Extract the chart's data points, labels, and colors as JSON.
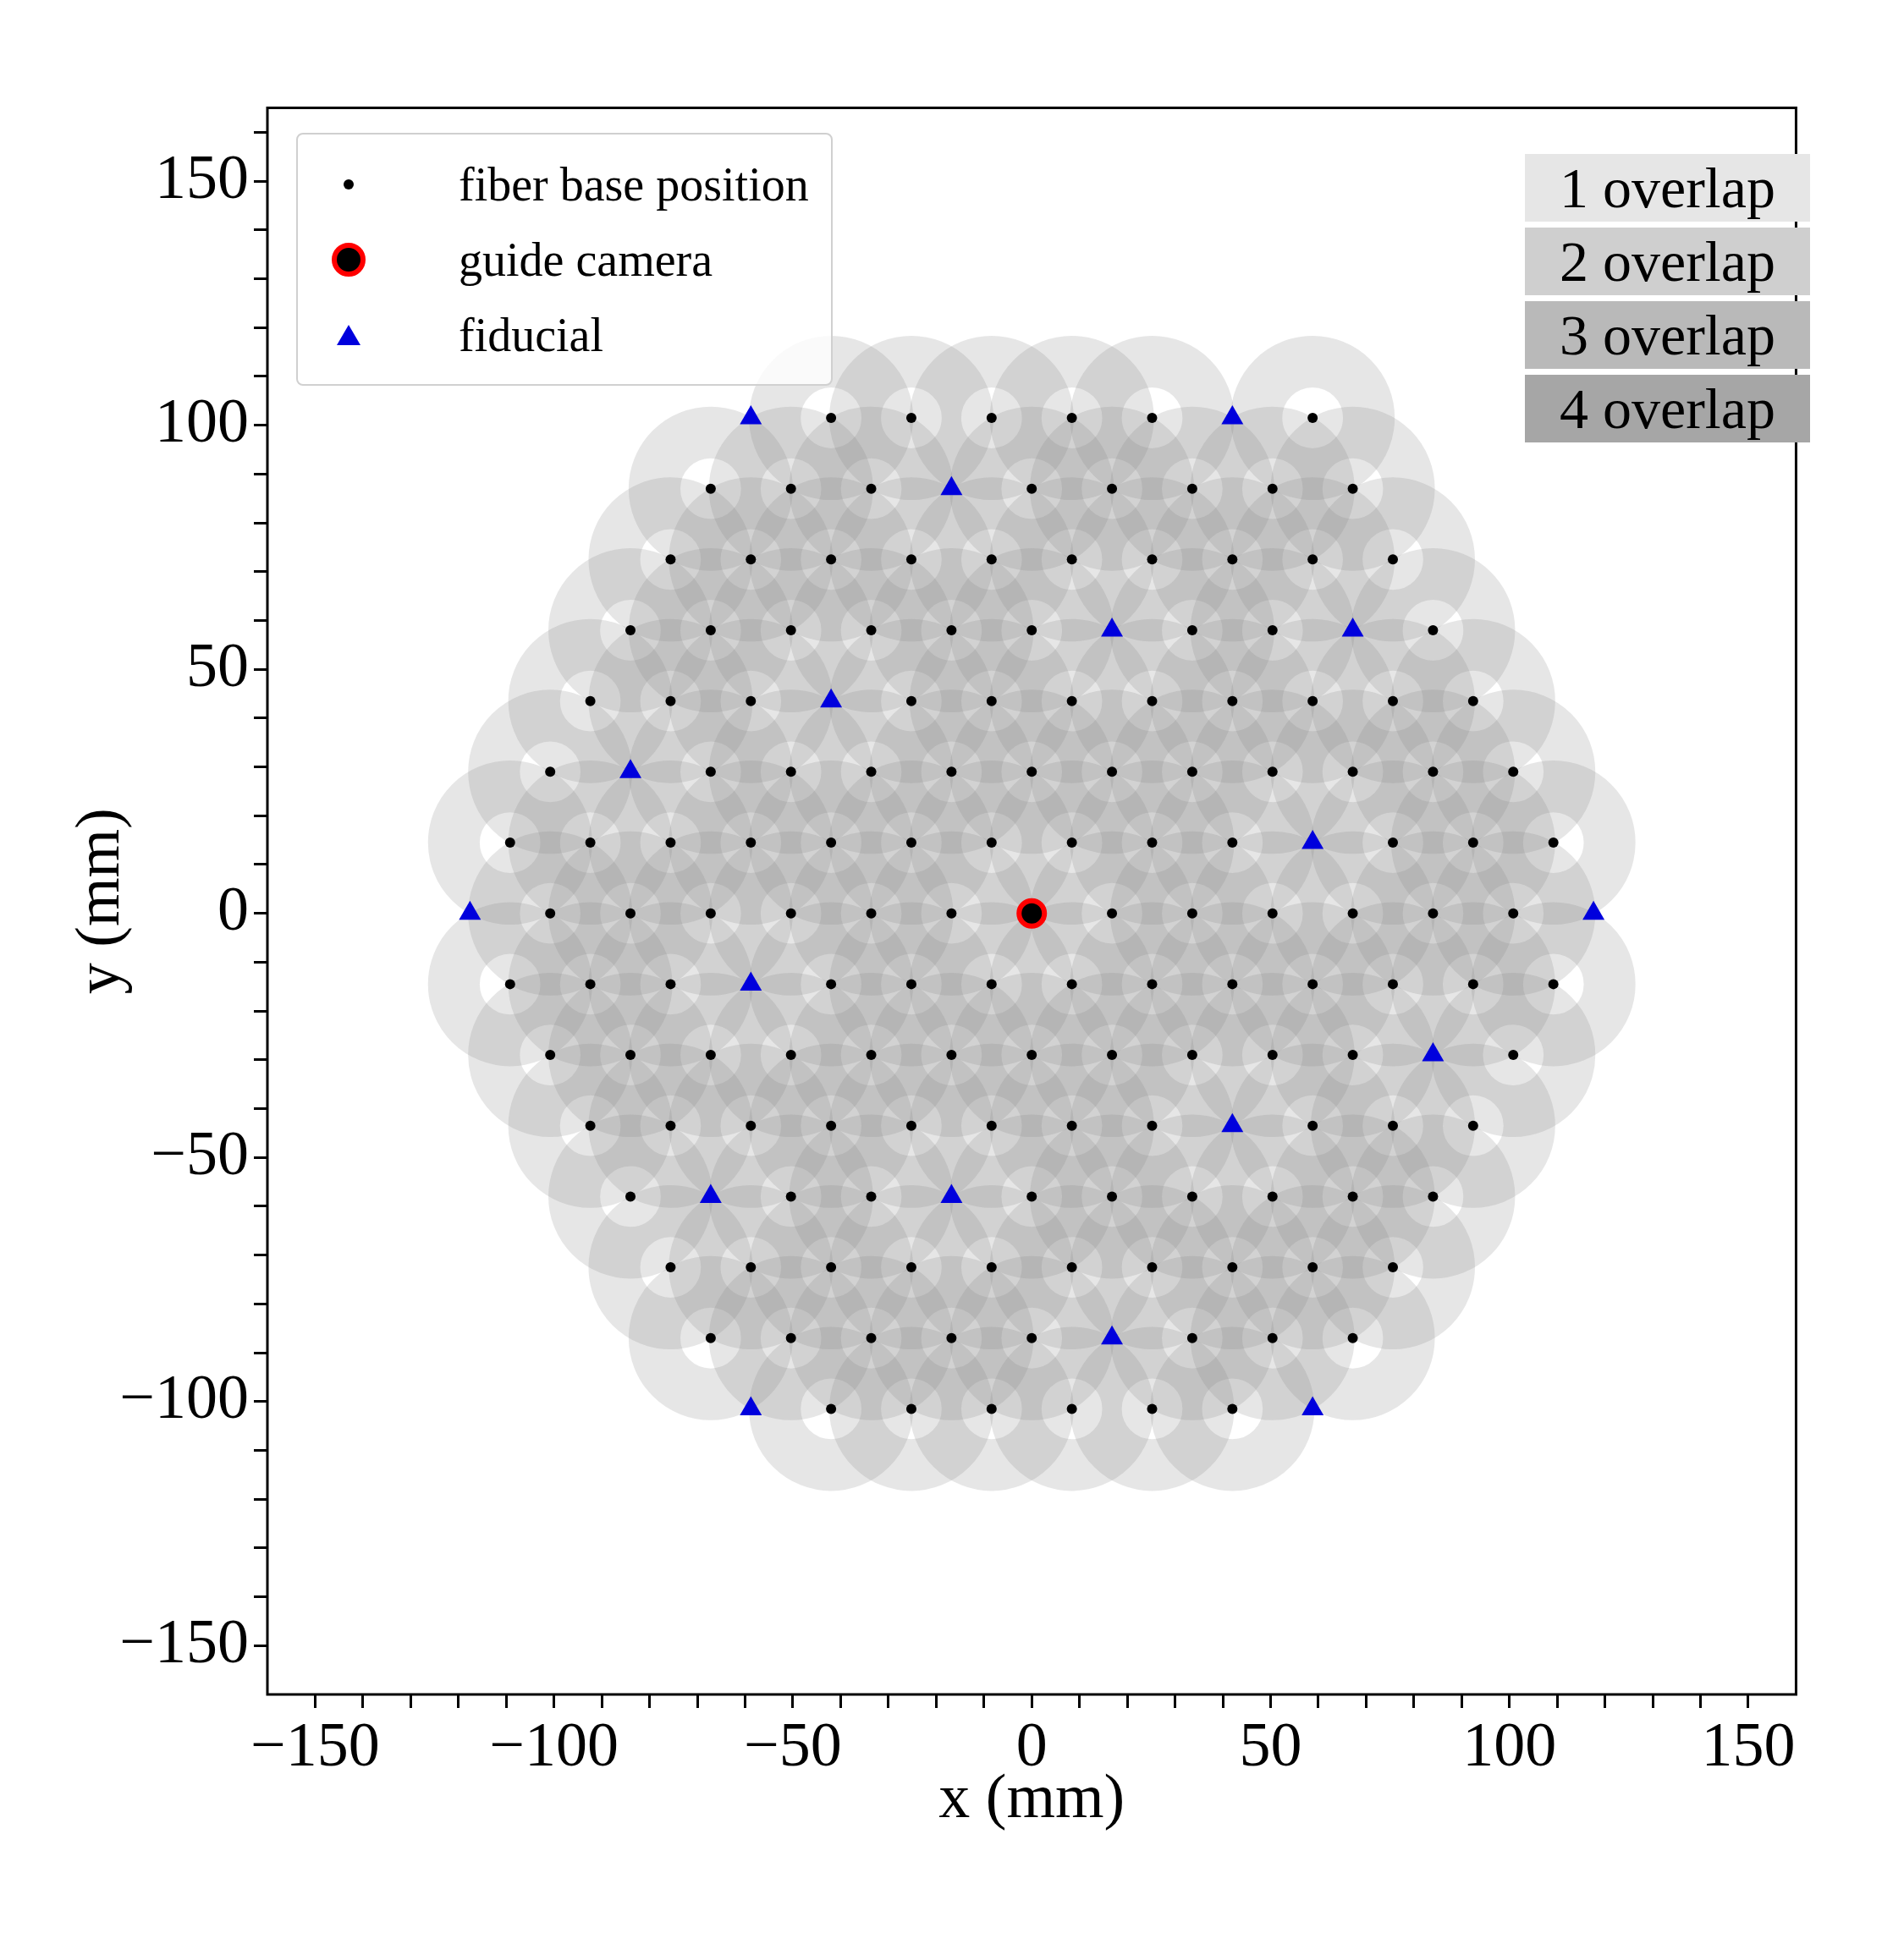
{
  "chart_data": {
    "type": "scatter",
    "xlabel": "x (mm)",
    "ylabel": "y (mm)",
    "legend": "top left",
    "xlim": [
      -160,
      160
    ],
    "ylim": [
      -160,
      165
    ],
    "xticks": [
      {
        "value": -150,
        "label": "−150"
      },
      {
        "value": -140,
        "label": null
      },
      {
        "value": -130,
        "label": null
      },
      {
        "value": -120,
        "label": null
      },
      {
        "value": -110,
        "label": null
      },
      {
        "value": -100,
        "label": "−100"
      },
      {
        "value": -90,
        "label": null
      },
      {
        "value": -80,
        "label": null
      },
      {
        "value": -70,
        "label": null
      },
      {
        "value": -60,
        "label": null
      },
      {
        "value": -50,
        "label": "−50"
      },
      {
        "value": -40,
        "label": null
      },
      {
        "value": -30,
        "label": null
      },
      {
        "value": -20,
        "label": null
      },
      {
        "value": -10,
        "label": null
      },
      0,
      {
        "value": 10,
        "label": null
      },
      {
        "value": 20,
        "label": null
      },
      {
        "value": 30,
        "label": null
      },
      {
        "value": 40,
        "label": null
      },
      50,
      {
        "value": 60,
        "label": null
      },
      {
        "value": 70,
        "label": null
      },
      {
        "value": 80,
        "label": null
      },
      {
        "value": 90,
        "label": null
      },
      100,
      {
        "value": 110,
        "label": null
      },
      {
        "value": 120,
        "label": null
      },
      {
        "value": 130,
        "label": null
      },
      {
        "value": 140,
        "label": null
      },
      150
    ],
    "yticks": [
      {
        "value": -150,
        "label": "−150"
      },
      {
        "value": -140,
        "label": null
      },
      {
        "value": -130,
        "label": null
      },
      {
        "value": -120,
        "label": null
      },
      {
        "value": -110,
        "label": null
      },
      {
        "value": -100,
        "label": "−100"
      },
      {
        "value": -90,
        "label": null
      },
      {
        "value": -80,
        "label": null
      },
      {
        "value": -70,
        "label": null
      },
      {
        "value": -60,
        "label": null
      },
      {
        "value": -50,
        "label": "−50"
      },
      {
        "value": -40,
        "label": null
      },
      {
        "value": -30,
        "label": null
      },
      {
        "value": -20,
        "label": null
      },
      {
        "value": -10,
        "label": null
      },
      0,
      {
        "value": 10,
        "label": null
      },
      {
        "value": 20,
        "label": null
      },
      {
        "value": 30,
        "label": null
      },
      {
        "value": 40,
        "label": null
      },
      50,
      {
        "value": 60,
        "label": null
      },
      {
        "value": 70,
        "label": null
      },
      {
        "value": 80,
        "label": null
      },
      {
        "value": 90,
        "label": null
      },
      100,
      {
        "value": 110,
        "label": null
      },
      {
        "value": 120,
        "label": null
      },
      {
        "value": 130,
        "label": null
      },
      {
        "value": 140,
        "label": null
      },
      150,
      {
        "value": 160,
        "label": null
      }
    ],
    "annotations": [
      "1 overlap",
      "2 overlap",
      "3 overlap",
      "4 overlap"
    ],
    "series": [
      {
        "type": "bubble",
        "color": "#808080",
        "x": [
          -42,
          -25.2,
          -8.4,
          8.4,
          25.2,
          58.8,
          -67.2,
          -50.4,
          -33.6,
          0,
          16.8,
          33.6,
          50.4,
          67.2,
          -75.6,
          -58.8,
          -42,
          -25.2,
          -8.4,
          8.4,
          25.2,
          42,
          58.8,
          75.6,
          -84,
          -67.2,
          -50.4,
          -33.6,
          -16.8,
          0,
          33.6,
          50.4,
          84,
          -92.4,
          -75.6,
          -58.8,
          -25.2,
          -8.4,
          8.4,
          25.2,
          42,
          58.8,
          75.6,
          92.4,
          -100.8,
          -67.2,
          -50.4,
          -33.6,
          -16.8,
          0,
          16.8,
          33.6,
          50.4,
          67.2,
          84,
          100.8,
          -109.2,
          -92.4,
          -75.6,
          -58.8,
          -42,
          -25.2,
          -8.4,
          8.4,
          25.2,
          42,
          75.6,
          92.4,
          109.2,
          -100.8,
          -84,
          -67.2,
          -50.4,
          -33.6,
          -16.8,
          16.8,
          33.6,
          50.4,
          67.2,
          84,
          100.8,
          -109.2,
          -92.4,
          -75.6,
          -42,
          -25.2,
          -8.4,
          8.4,
          25.2,
          42,
          58.8,
          75.6,
          92.4,
          109.2,
          -100.8,
          -84,
          -67.2,
          -50.4,
          -33.6,
          -16.8,
          0,
          16.8,
          33.6,
          50.4,
          67.2,
          100.8,
          -92.4,
          -75.6,
          -58.8,
          -42,
          -25.2,
          -8.4,
          8.4,
          25.2,
          58.8,
          75.6,
          92.4,
          -84,
          -50.4,
          -33.6,
          0,
          16.8,
          33.6,
          50.4,
          67.2,
          84,
          -75.6,
          -58.8,
          -42,
          -25.2,
          -8.4,
          8.4,
          25.2,
          42,
          58.8,
          75.6,
          -67.2,
          -50.4,
          -33.6,
          -16.8,
          0,
          33.6,
          50.4,
          67.2,
          -42,
          -25.2,
          -8.4,
          8.4,
          25.2,
          42
        ],
        "values": [
          101.5,
          101.5,
          101.5,
          101.5,
          101.5,
          101.5,
          87,
          87,
          87,
          87,
          87,
          87,
          87,
          87,
          72.5,
          72.5,
          72.5,
          72.5,
          72.5,
          72.5,
          72.5,
          72.5,
          72.5,
          72.5,
          58,
          58,
          58,
          58,
          58,
          58,
          58,
          58,
          58,
          43.5,
          43.5,
          43.5,
          43.5,
          43.5,
          43.5,
          43.5,
          43.5,
          43.5,
          43.5,
          43.5,
          29,
          29,
          29,
          29,
          29,
          29,
          29,
          29,
          29,
          29,
          29,
          29,
          14.5,
          14.5,
          14.5,
          14.5,
          14.5,
          14.5,
          14.5,
          14.5,
          14.5,
          14.5,
          14.5,
          14.5,
          14.5,
          0,
          0,
          0,
          0,
          0,
          0,
          0,
          0,
          0,
          0,
          0,
          0,
          -14.5,
          -14.5,
          -14.5,
          -14.5,
          -14.5,
          -14.5,
          -14.5,
          -14.5,
          -14.5,
          -14.5,
          -14.5,
          -14.5,
          -14.5,
          -29,
          -29,
          -29,
          -29,
          -29,
          -29,
          -29,
          -29,
          -29,
          -29,
          -29,
          -29,
          -43.5,
          -43.5,
          -43.5,
          -43.5,
          -43.5,
          -43.5,
          -43.5,
          -43.5,
          -43.5,
          -43.5,
          -43.5,
          -58,
          -58,
          -58,
          -58,
          -58,
          -58,
          -58,
          -58,
          -58,
          -72.5,
          -72.5,
          -72.5,
          -72.5,
          -72.5,
          -72.5,
          -72.5,
          -72.5,
          -72.5,
          -72.5,
          -87,
          -87,
          -87,
          -87,
          -87,
          -87,
          -87,
          -87,
          -101.5,
          -101.5,
          -101.5,
          -101.5,
          -101.5,
          -101.5
        ],
        "sizes": [
          1,
          1,
          1,
          1,
          1,
          1,
          1,
          1,
          1,
          1,
          1,
          1,
          1,
          1,
          1,
          1,
          1,
          1,
          1,
          1,
          1,
          1,
          1,
          1,
          1,
          1,
          1,
          1,
          1,
          1,
          1,
          1,
          1,
          1,
          1,
          1,
          1,
          1,
          1,
          1,
          1,
          1,
          1,
          1,
          1,
          1,
          1,
          1,
          1,
          1,
          1,
          1,
          1,
          1,
          1,
          1,
          1,
          1,
          1,
          1,
          1,
          1,
          1,
          1,
          1,
          1,
          1,
          1,
          1,
          1,
          1,
          1,
          1,
          1,
          1,
          1,
          1,
          1,
          1,
          1,
          1,
          1,
          1,
          1,
          1,
          1,
          1,
          1,
          1,
          1,
          1,
          1,
          1,
          1,
          1,
          1,
          1,
          1,
          1,
          1,
          1,
          1,
          1,
          1,
          1,
          1,
          1,
          1,
          1,
          1,
          1,
          1,
          1,
          1,
          1,
          1,
          1,
          1,
          1,
          1,
          1,
          1,
          1,
          1,
          1,
          1,
          1,
          1,
          1,
          1,
          1,
          1,
          1,
          1,
          1,
          1,
          1,
          1,
          1,
          1,
          1,
          1,
          1,
          1,
          1,
          1,
          1,
          1,
          1,
          1
        ]
      },
      {
        "name": "fiber base position",
        "marker": "circle",
        "color": "#000000",
        "x": [
          -42,
          -25.2,
          -8.4,
          8.4,
          25.2,
          58.8,
          -67.2,
          -50.4,
          -33.6,
          0,
          16.8,
          33.6,
          50.4,
          67.2,
          -75.6,
          -58.8,
          -42,
          -25.2,
          -8.4,
          8.4,
          25.2,
          42,
          58.8,
          75.6,
          -84,
          -67.2,
          -50.4,
          -33.6,
          -16.8,
          0,
          33.6,
          50.4,
          84,
          -92.4,
          -75.6,
          -58.8,
          -25.2,
          -8.4,
          8.4,
          25.2,
          42,
          58.8,
          75.6,
          92.4,
          -100.8,
          -67.2,
          -50.4,
          -33.6,
          -16.8,
          0,
          16.8,
          33.6,
          50.4,
          67.2,
          84,
          100.8,
          -109.2,
          -92.4,
          -75.6,
          -58.8,
          -42,
          -25.2,
          -8.4,
          8.4,
          25.2,
          42,
          75.6,
          92.4,
          109.2,
          -100.8,
          -84,
          -67.2,
          -50.4,
          -33.6,
          -16.8,
          16.8,
          33.6,
          50.4,
          67.2,
          84,
          100.8,
          -109.2,
          -92.4,
          -75.6,
          -42,
          -25.2,
          -8.4,
          8.4,
          25.2,
          42,
          58.8,
          75.6,
          92.4,
          109.2,
          -100.8,
          -84,
          -67.2,
          -50.4,
          -33.6,
          -16.8,
          0,
          16.8,
          33.6,
          50.4,
          67.2,
          100.8,
          -92.4,
          -75.6,
          -58.8,
          -42,
          -25.2,
          -8.4,
          8.4,
          25.2,
          58.8,
          75.6,
          92.4,
          -84,
          -50.4,
          -33.6,
          0,
          16.8,
          33.6,
          50.4,
          67.2,
          84,
          -75.6,
          -58.8,
          -42,
          -25.2,
          -8.4,
          8.4,
          25.2,
          42,
          58.8,
          75.6,
          -67.2,
          -50.4,
          -33.6,
          -16.8,
          0,
          33.6,
          50.4,
          67.2,
          -42,
          -25.2,
          -8.4,
          8.4,
          25.2,
          42
        ],
        "values": [
          101.5,
          101.5,
          101.5,
          101.5,
          101.5,
          101.5,
          87,
          87,
          87,
          87,
          87,
          87,
          87,
          87,
          72.5,
          72.5,
          72.5,
          72.5,
          72.5,
          72.5,
          72.5,
          72.5,
          72.5,
          72.5,
          58,
          58,
          58,
          58,
          58,
          58,
          58,
          58,
          58,
          43.5,
          43.5,
          43.5,
          43.5,
          43.5,
          43.5,
          43.5,
          43.5,
          43.5,
          43.5,
          43.5,
          29,
          29,
          29,
          29,
          29,
          29,
          29,
          29,
          29,
          29,
          29,
          29,
          14.5,
          14.5,
          14.5,
          14.5,
          14.5,
          14.5,
          14.5,
          14.5,
          14.5,
          14.5,
          14.5,
          14.5,
          14.5,
          0,
          0,
          0,
          0,
          0,
          0,
          0,
          0,
          0,
          0,
          0,
          0,
          -14.5,
          -14.5,
          -14.5,
          -14.5,
          -14.5,
          -14.5,
          -14.5,
          -14.5,
          -14.5,
          -14.5,
          -14.5,
          -14.5,
          -14.5,
          -29,
          -29,
          -29,
          -29,
          -29,
          -29,
          -29,
          -29,
          -29,
          -29,
          -29,
          -29,
          -43.5,
          -43.5,
          -43.5,
          -43.5,
          -43.5,
          -43.5,
          -43.5,
          -43.5,
          -43.5,
          -43.5,
          -43.5,
          -58,
          -58,
          -58,
          -58,
          -58,
          -58,
          -58,
          -58,
          -58,
          -72.5,
          -72.5,
          -72.5,
          -72.5,
          -72.5,
          -72.5,
          -72.5,
          -72.5,
          -72.5,
          -72.5,
          -87,
          -87,
          -87,
          -87,
          -87,
          -87,
          -87,
          -87,
          -101.5,
          -101.5,
          -101.5,
          -101.5,
          -101.5,
          -101.5
        ]
      },
      {
        "name": "guide camera",
        "marker": "circle",
        "color": "#ff0000",
        "x": [
          0
        ],
        "values": [
          0
        ]
      },
      {
        "name": "fiducial",
        "marker": "triangle",
        "color": "#0000dd",
        "x": [
          -58.8,
          42,
          -16.8,
          16.8,
          67.2,
          -42,
          -84,
          58.8,
          -117.6,
          117.6,
          -58.8,
          84,
          42,
          -67.2,
          -16.8,
          16.8,
          -58.8,
          58.8
        ],
        "values": [
          101.5,
          101.5,
          87,
          58,
          58,
          43.5,
          29,
          14.5,
          0,
          0,
          -14.5,
          -29,
          -43.5,
          -58,
          -58,
          -87,
          -101.5,
          -101.5
        ]
      }
    ]
  }
}
